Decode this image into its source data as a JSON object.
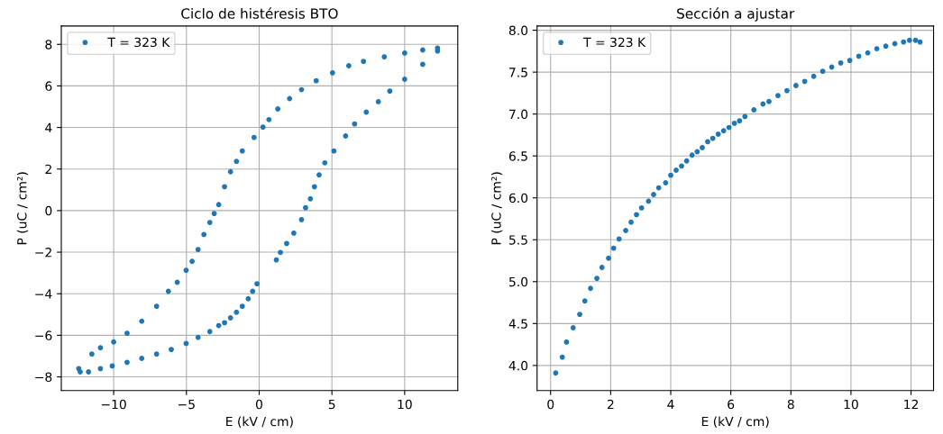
{
  "chart_data": [
    {
      "type": "scatter",
      "title": "Ciclo de histéresis BTO",
      "xlabel": "E (kV / cm)",
      "ylabel": "P (uC / cm²)",
      "xlim": [
        -13.6,
        13.65
      ],
      "ylim": [
        -8.66,
        8.88
      ],
      "xticks": [
        {
          "value": -10,
          "label": "−10"
        },
        {
          "value": -5,
          "label": "−5"
        },
        0,
        5,
        10
      ],
      "yticks": [
        {
          "value": -8,
          "label": "−8"
        },
        {
          "value": -6,
          "label": "−6"
        },
        {
          "value": -4,
          "label": "−4"
        },
        {
          "value": -2,
          "label": "−2"
        },
        0,
        2,
        4,
        6,
        8
      ],
      "grid": true,
      "legend": "top left",
      "marker": "circle",
      "series": [
        {
          "name": "T = 323 K",
          "color": "#1f77b4",
          "x": [
            -0.15,
            -0.45,
            -0.75,
            -1.16,
            -1.56,
            -1.97,
            -2.38,
            -2.78,
            -3.39,
            -4.2,
            -5.02,
            -6.04,
            -7.05,
            -8.07,
            -9.08,
            -10.1,
            -10.91,
            -11.73,
            -12.3,
            -12.4,
            -11.5,
            -10.91,
            -10.0,
            -9.08,
            -8.07,
            -7.05,
            -6.24,
            -5.63,
            -5.02,
            -4.61,
            -4.2,
            -3.8,
            -3.39,
            -3.09,
            -2.78,
            -2.38,
            -1.97,
            -1.56,
            -1.16,
            -0.35,
            0.26,
            0.67,
            1.28,
            2.09,
            2.91,
            3.92,
            5.04,
            6.16,
            7.17,
            8.6,
            10.0,
            11.24,
            12.26,
            12.26,
            11.24,
            10.0,
            8.98,
            8.19,
            7.36,
            6.56,
            5.94,
            5.14,
            4.51,
            4.12,
            3.8,
            3.52,
            3.19,
            2.91,
            2.38,
            1.89,
            1.46,
            1.18
          ],
          "values": [
            -3.52,
            -3.88,
            -4.24,
            -4.6,
            -4.89,
            -5.16,
            -5.39,
            -5.53,
            -5.82,
            -6.1,
            -6.39,
            -6.68,
            -6.9,
            -7.11,
            -7.3,
            -7.47,
            -7.6,
            -7.76,
            -7.76,
            -7.6,
            -6.9,
            -6.6,
            -6.32,
            -5.9,
            -5.32,
            -4.6,
            -3.88,
            -3.45,
            -2.87,
            -2.44,
            -1.87,
            -1.15,
            -0.57,
            -0.14,
            0.29,
            1.15,
            1.87,
            2.37,
            2.87,
            3.52,
            4.02,
            4.38,
            4.89,
            5.39,
            5.82,
            6.25,
            6.63,
            6.97,
            7.18,
            7.4,
            7.58,
            7.73,
            7.82,
            7.68,
            7.04,
            6.32,
            5.75,
            5.24,
            4.74,
            4.17,
            3.59,
            2.87,
            2.3,
            1.72,
            1.15,
            0.57,
            0.14,
            -0.43,
            -1.08,
            -1.58,
            -2.01,
            -2.37
          ]
        }
      ]
    },
    {
      "type": "scatter",
      "title": "Sección a ajustar",
      "xlabel": "E (kV / cm)",
      "ylabel": "P (uC / cm²)",
      "xlim": [
        -0.45,
        12.75
      ],
      "ylim": [
        3.7,
        8.05
      ],
      "xticks": [
        0,
        2,
        4,
        6,
        8,
        10,
        12
      ],
      "yticks": [
        {
          "value": 4,
          "label": "4.0"
        },
        4.5,
        {
          "value": 5,
          "label": "5.0"
        },
        5.5,
        {
          "value": 6,
          "label": "6.0"
        },
        6.5,
        {
          "value": 7,
          "label": "7.0"
        },
        7.5,
        {
          "value": 8,
          "label": "8.0"
        }
      ],
      "grid": true,
      "legend": "top left",
      "marker": "circle",
      "series": [
        {
          "name": "T = 323 K",
          "color": "#1f77b4",
          "x": [
            0.17,
            0.39,
            0.53,
            0.75,
            0.97,
            1.14,
            1.33,
            1.54,
            1.71,
            1.93,
            2.1,
            2.28,
            2.5,
            2.68,
            2.86,
            3.03,
            3.26,
            3.43,
            3.6,
            3.83,
            4.0,
            4.18,
            4.36,
            4.53,
            4.71,
            4.88,
            5.05,
            5.23,
            5.4,
            5.58,
            5.76,
            5.94,
            6.12,
            6.29,
            6.47,
            6.77,
            7.07,
            7.27,
            7.57,
            7.87,
            8.17,
            8.46,
            8.76,
            9.06,
            9.36,
            9.66,
            9.96,
            10.26,
            10.56,
            10.86,
            11.16,
            11.46,
            11.75,
            11.95,
            12.15,
            12.3
          ],
          "values": [
            3.91,
            4.1,
            4.28,
            4.45,
            4.61,
            4.77,
            4.92,
            5.04,
            5.17,
            5.28,
            5.4,
            5.51,
            5.61,
            5.71,
            5.8,
            5.88,
            5.96,
            6.04,
            6.12,
            6.18,
            6.27,
            6.33,
            6.38,
            6.44,
            6.51,
            6.55,
            6.6,
            6.67,
            6.71,
            6.76,
            6.8,
            6.84,
            6.89,
            6.92,
            6.97,
            7.05,
            7.12,
            7.15,
            7.22,
            7.28,
            7.34,
            7.39,
            7.45,
            7.51,
            7.56,
            7.61,
            7.64,
            7.69,
            7.73,
            7.78,
            7.81,
            7.84,
            7.86,
            7.88,
            7.88,
            7.86
          ]
        }
      ]
    }
  ]
}
